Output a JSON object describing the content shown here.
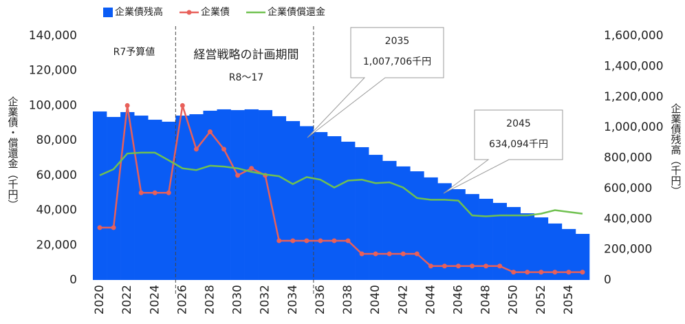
{
  "chart_data": {
    "type": "bar-line",
    "categories": [
      "2020",
      null,
      "2022",
      null,
      "2024",
      null,
      "2026",
      null,
      "2028",
      null,
      "2030",
      null,
      "2032",
      null,
      "2034",
      null,
      "2036",
      null,
      "2038",
      null,
      "2040",
      null,
      "2042",
      null,
      "2044",
      null,
      "2046",
      null,
      "2048",
      null,
      "2050",
      null,
      "2052",
      null,
      "2054",
      null
    ],
    "series": [
      {
        "name": "企業債残高",
        "type": "bar",
        "axis": "y2",
        "color": "#0a5cf5",
        "values": [
          1104000,
          1068000,
          1100000,
          1077000,
          1050000,
          1037000,
          1077000,
          1086000,
          1109000,
          1118000,
          1113000,
          1118000,
          1113000,
          1073000,
          1041000,
          1007706,
          969000,
          942000,
          906000,
          870000,
          820000,
          780000,
          744000,
          712000,
          672000,
          634094,
          595000,
          563000,
          532000,
          505000,
          478000,
          437000,
          410000,
          370000,
          334000,
          302000
        ]
      },
      {
        "name": "企業債",
        "type": "line",
        "marker": true,
        "color": "#e8605a",
        "values": [
          30000,
          30000,
          100000,
          50000,
          50000,
          50000,
          100000,
          75000,
          85000,
          75000,
          60000,
          64000,
          60000,
          22500,
          22500,
          22500,
          22500,
          22500,
          22500,
          15000,
          15000,
          15000,
          15000,
          15000,
          8000,
          8000,
          8000,
          8000,
          8000,
          8000,
          4500,
          4500,
          4500,
          4500,
          4500,
          4500
        ]
      },
      {
        "name": "企業債償還金",
        "type": "line",
        "marker": false,
        "color": "#70c150",
        "values": [
          60000,
          63500,
          72500,
          73000,
          73000,
          68600,
          64000,
          63000,
          65500,
          65000,
          64000,
          62000,
          60500,
          59500,
          55000,
          59000,
          57500,
          53000,
          57000,
          57500,
          55500,
          56000,
          53000,
          47000,
          46000,
          46000,
          45500,
          37000,
          36500,
          37000,
          37000,
          37000,
          38000,
          40000,
          39000,
          38000
        ]
      }
    ],
    "y_label": "企業債・償還金（千円）",
    "y2_label": "企業債残高（千円）",
    "ylim": [
      0,
      140000
    ],
    "yticks": [
      0,
      {
        "value": 20000,
        "label": "20,000"
      },
      {
        "value": 40000,
        "label": "40,000"
      },
      {
        "value": 60000,
        "label": "60,000"
      },
      {
        "value": 80000,
        "label": "80,000"
      },
      {
        "value": 100000,
        "label": "100,000"
      },
      {
        "value": 120000,
        "label": "120,000"
      },
      {
        "value": 140000,
        "label": "140,000"
      }
    ],
    "y2lim": [
      0,
      1600000
    ],
    "y2ticks": [
      0,
      {
        "value": 200000,
        "label": "200,000"
      },
      {
        "value": 400000,
        "label": "400,000"
      },
      {
        "value": 600000,
        "label": "600,000"
      },
      {
        "value": 800000,
        "label": "800,000"
      },
      {
        "value": 1000000,
        "label": "1,000,000"
      },
      {
        "value": 1200000,
        "label": "1,200,000"
      },
      {
        "value": 1400000,
        "label": "1,400,000"
      },
      {
        "value": 1600000,
        "label": "1,600,000"
      }
    ],
    "annotations": [
      {
        "text": "R7予算値"
      },
      {
        "text": "経営戦略の計画期間"
      },
      {
        "text": "R8〜17"
      }
    ],
    "callouts": [
      {
        "lines": [
          "2035",
          "1,007,706千円"
        ]
      },
      {
        "lines": [
          "2045",
          "634,094千円"
        ]
      }
    ],
    "legend": "top"
  }
}
